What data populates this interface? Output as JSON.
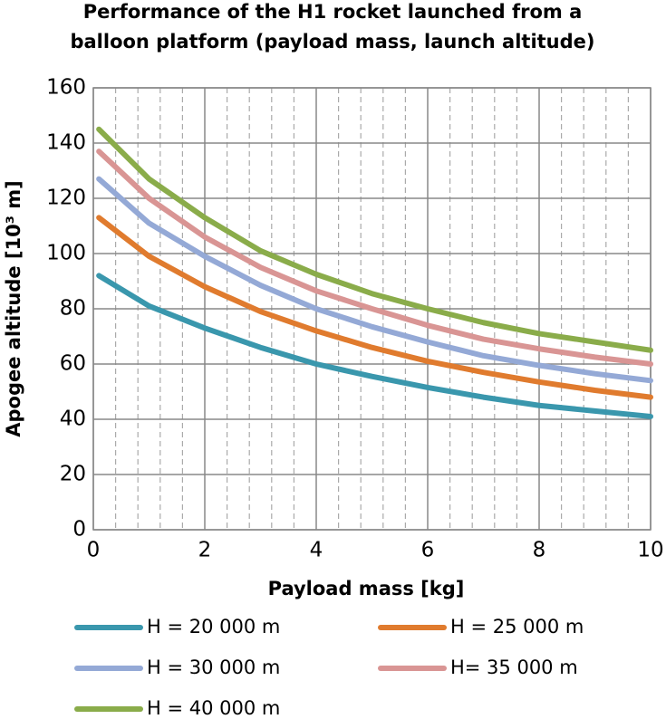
{
  "chart_data": {
    "type": "line",
    "title": [
      "Performance of the H1 rocket launched from a",
      "balloon platform (payload mass, launch altitude)"
    ],
    "x_label": "Payload mass [kg]",
    "y_label": "Apogee altitude [10³ m]",
    "x": [
      0.1,
      1,
      2,
      3,
      4,
      5,
      6,
      7,
      8,
      9,
      10
    ],
    "series": [
      {
        "name": "H = 20 000 m",
        "color": "#3a97ad",
        "values": [
          92,
          81,
          73,
          66,
          60,
          55.5,
          51.5,
          48,
          45,
          43,
          41
        ]
      },
      {
        "name": "H = 25 000 m",
        "color": "#e07b2e",
        "values": [
          113,
          99,
          88,
          79,
          72,
          66,
          61,
          57,
          53.5,
          50.5,
          48
        ]
      },
      {
        "name": "H = 30 000 m",
        "color": "#94a9d6",
        "values": [
          127,
          111,
          99,
          88.5,
          80,
          73.5,
          68,
          63,
          59.5,
          56.5,
          54
        ]
      },
      {
        "name": "H= 35 000 m",
        "color": "#d99594",
        "values": [
          137,
          120,
          106,
          95,
          86.5,
          80,
          74,
          69,
          65.5,
          62.5,
          60
        ]
      },
      {
        "name": "H = 40 000 m",
        "color": "#8aac4a",
        "values": [
          145,
          127,
          113,
          101,
          92.5,
          85.5,
          80,
          75,
          71,
          68,
          65
        ]
      }
    ],
    "xlim": [
      0,
      10
    ],
    "xticks": [
      0,
      2,
      4,
      6,
      8,
      10
    ],
    "ylim": [
      0,
      160
    ],
    "yticks": [
      0,
      20,
      40,
      60,
      80,
      100,
      120,
      140,
      160
    ],
    "grid": true,
    "legend": "bottom"
  }
}
